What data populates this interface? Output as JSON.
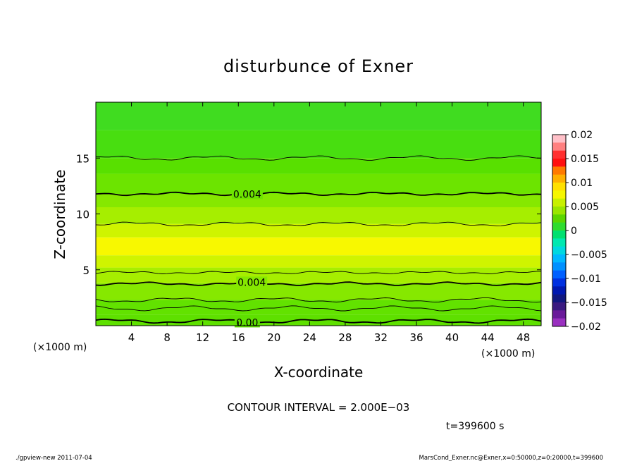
{
  "chart_data": {
    "type": "contour",
    "title": "disturbunce of Exner",
    "xlabel": "X-coordinate",
    "ylabel": "Z-coordinate",
    "x_unit": "(×1000 m)",
    "y_unit": "(×1000 m)",
    "xlim": [
      0,
      50
    ],
    "ylim": [
      0,
      20
    ],
    "x_ticks": [
      4,
      8,
      12,
      16,
      20,
      24,
      28,
      32,
      36,
      40,
      44,
      48
    ],
    "y_ticks": [
      5,
      10,
      15
    ],
    "colorbar": {
      "ticks": [
        "0.02",
        "0.015",
        "0.01",
        "0.005",
        "0",
        "−0.005",
        "−0.01",
        "−0.015",
        "−0.02"
      ],
      "levels": [
        0.02,
        0.015,
        0.01,
        0.005,
        0,
        -0.005,
        -0.01,
        -0.015,
        -0.02
      ],
      "colors": [
        "#ffc0c8",
        "#ff8080",
        "#ff3030",
        "#ff1010",
        "#ff7a00",
        "#ffb000",
        "#ffe000",
        "#f6f600",
        "#c8f000",
        "#9ae600",
        "#5cd600",
        "#2fdc2f",
        "#00e070",
        "#00e8b0",
        "#00d8e0",
        "#00b8ff",
        "#0090ff",
        "#0060ff",
        "#0030e0",
        "#0018b0",
        "#101880",
        "#3a1a80",
        "#6a1a9a",
        "#9a30c0"
      ]
    },
    "fill_bands": [
      {
        "z_range": [
          0,
          1.0
        ],
        "color": "#5ee000"
      },
      {
        "z_range": [
          1.0,
          2.3
        ],
        "color": "#62e200"
      },
      {
        "z_range": [
          2.3,
          3.8
        ],
        "color": "#86e800"
      },
      {
        "z_range": [
          3.8,
          5.2
        ],
        "color": "#a6ee00"
      },
      {
        "z_range": [
          5.2,
          6.3
        ],
        "color": "#cff400"
      },
      {
        "z_range": [
          6.3,
          7.9
        ],
        "color": "#f8f800"
      },
      {
        "z_range": [
          7.9,
          9.1
        ],
        "color": "#cff400"
      },
      {
        "z_range": [
          9.1,
          10.6
        ],
        "color": "#a6ee00"
      },
      {
        "z_range": [
          10.6,
          11.8
        ],
        "color": "#86e800"
      },
      {
        "z_range": [
          11.8,
          13.6
        ],
        "color": "#6ce400"
      },
      {
        "z_range": [
          13.6,
          15.0
        ],
        "color": "#58e000"
      },
      {
        "z_range": [
          15.0,
          17.5
        ],
        "color": "#48de10"
      },
      {
        "z_range": [
          17.5,
          20.0
        ],
        "color": "#40dc20"
      }
    ],
    "contours": [
      {
        "z": 0.4,
        "bold": true,
        "label": "0.00",
        "label_x": 17.0
      },
      {
        "z": 1.55,
        "bold": false
      },
      {
        "z": 2.3,
        "bold": false
      },
      {
        "z": 3.75,
        "bold": true,
        "label": "0.004",
        "label_x": 17.5
      },
      {
        "z": 4.75,
        "bold": false
      },
      {
        "z": 9.1,
        "bold": false
      },
      {
        "z": 11.8,
        "bold": true,
        "label": "0.004",
        "label_x": 17.0
      },
      {
        "z": 15.0,
        "bold": false
      }
    ],
    "contour_interval_text": "CONTOUR INTERVAL = 2.000E−03",
    "time_text": "t=399600 s"
  },
  "footer": {
    "left": "./gpview-new   2011-07-04",
    "right": "MarsCond_Exner.nc@Exner,x=0:50000,z=0:20000,t=399600"
  }
}
